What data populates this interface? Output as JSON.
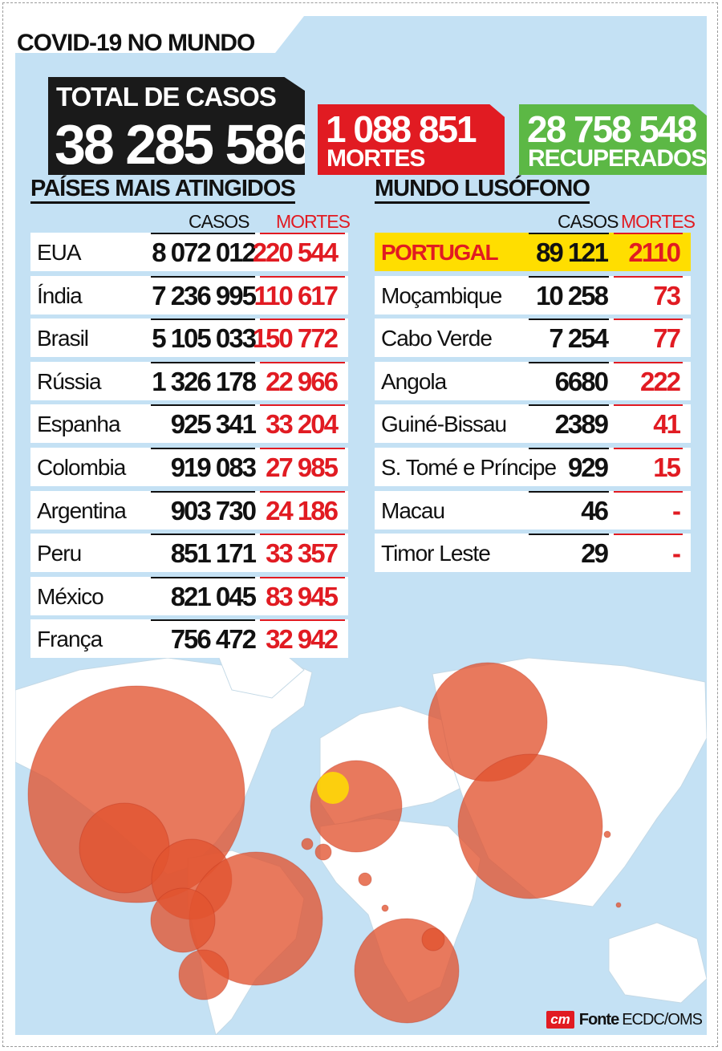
{
  "title": "COVID-19 NO MUNDO",
  "totals": {
    "cases_label": "TOTAL DE CASOS",
    "cases_value": "38 285 586",
    "deaths_value": "1 088 851",
    "deaths_label": "MORTES",
    "recovered_value": "28 758 548",
    "recovered_label": "RECUPERADOS"
  },
  "colors": {
    "deaths_red": "#e11b22",
    "recovered_green": "#5cb845",
    "highlight_yellow": "#ffde00",
    "bubble": "#e2532f",
    "map_land": "#ffffff",
    "map_sea": "#c4e1f4"
  },
  "chart_data": [
    {
      "type": "table",
      "title": "PAÍSES MAIS ATINGIDOS",
      "columns": [
        "CASOS",
        "MORTES"
      ],
      "rows": [
        {
          "country": "EUA",
          "cases": "8 072 012",
          "deaths": "220 544"
        },
        {
          "country": "Índia",
          "cases": "7 236 995",
          "deaths": "110 617"
        },
        {
          "country": "Brasil",
          "cases": "5 105 033",
          "deaths": "150 772"
        },
        {
          "country": "Rússia",
          "cases": "1 326 178",
          "deaths": "22 966"
        },
        {
          "country": "Espanha",
          "cases": "925 341",
          "deaths": "33 204"
        },
        {
          "country": "Colombia",
          "cases": "919 083",
          "deaths": "27 985"
        },
        {
          "country": "Argentina",
          "cases": "903 730",
          "deaths": "24 186"
        },
        {
          "country": "Peru",
          "cases": "851 171",
          "deaths": "33 357"
        },
        {
          "country": "México",
          "cases": "821 045",
          "deaths": "83 945"
        },
        {
          "country": "França",
          "cases": "756 472",
          "deaths": "32 942"
        }
      ]
    },
    {
      "type": "table",
      "title": "MUNDO LUSÓFONO",
      "columns": [
        "CASOS",
        "MORTES"
      ],
      "highlight": "PORTUGAL",
      "rows": [
        {
          "country": "PORTUGAL",
          "cases": "89 121",
          "deaths": "2110"
        },
        {
          "country": "Moçambique",
          "cases": "10 258",
          "deaths": "73"
        },
        {
          "country": "Cabo Verde",
          "cases": "7 254",
          "deaths": "77"
        },
        {
          "country": "Angola",
          "cases": "6680",
          "deaths": "222"
        },
        {
          "country": "Guiné-Bissau",
          "cases": "2389",
          "deaths": "41"
        },
        {
          "country": "S. Tomé e Príncipe",
          "cases": "929",
          "deaths": "15"
        },
        {
          "country": "Macau",
          "cases": "46",
          "deaths": "-"
        },
        {
          "country": "Timor Leste",
          "cases": "29",
          "deaths": "-"
        }
      ]
    }
  ],
  "source": {
    "logo": "cm",
    "label": "Fonte",
    "text": "ECDC/OMS"
  }
}
